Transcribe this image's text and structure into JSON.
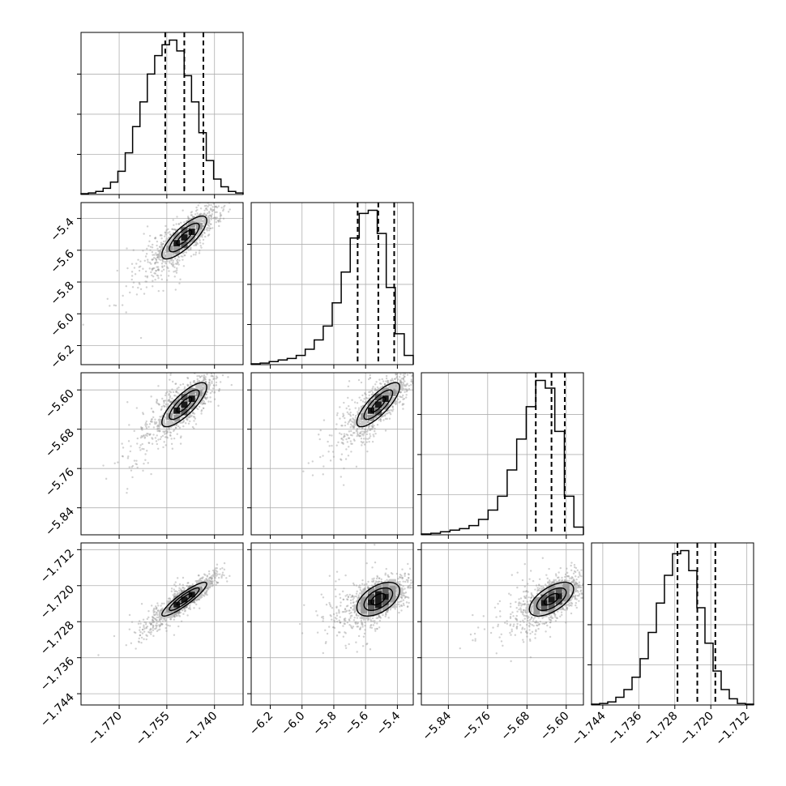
{
  "chart_data": {
    "type": "corner",
    "colors": {
      "line": "#000000",
      "grid": "#b0b0b0",
      "point": "#9a9a9a"
    },
    "params": [
      {
        "lo": -1.782,
        "hi": -1.731,
        "center": -1.7495,
        "sigma": 0.0047,
        "q": [
          -1.7555,
          -1.7495,
          -1.7435
        ],
        "ticks": [
          -1.77,
          -1.755,
          -1.74
        ],
        "tick_labels": [
          "−1.770",
          "−1.755",
          "−1.740"
        ]
      },
      {
        "lo": -6.32,
        "hi": -5.3,
        "center": -5.52,
        "sigma": 0.09,
        "q": [
          -5.65,
          -5.52,
          -5.42
        ],
        "ticks": [
          -6.2,
          -6.0,
          -5.8,
          -5.6,
          -5.4
        ],
        "tick_labels": [
          "−6.2",
          "−6.0",
          "−5.8",
          "−5.6",
          "−5.4"
        ]
      },
      {
        "lo": -5.895,
        "hi": -5.565,
        "center": -5.63,
        "sigma": 0.03,
        "q": [
          -5.662,
          -5.63,
          -5.603
        ],
        "ticks": [
          -5.84,
          -5.76,
          -5.68,
          -5.6
        ],
        "tick_labels": [
          "−5.84",
          "−5.76",
          "−5.68",
          "−5.60"
        ]
      },
      {
        "lo": -1.7465,
        "hi": -1.7105,
        "center": -1.723,
        "sigma": 0.0025,
        "q": [
          -1.7274,
          -1.723,
          -1.719
        ],
        "ticks": [
          -1.744,
          -1.736,
          -1.728,
          -1.72,
          -1.712
        ],
        "tick_labels": [
          "−1.744",
          "−1.736",
          "−1.728",
          "−1.720",
          "−1.712"
        ]
      }
    ],
    "histograms": [
      [
        0.005,
        0.01,
        0.02,
        0.04,
        0.08,
        0.15,
        0.27,
        0.44,
        0.6,
        0.78,
        0.9,
        0.97,
        1.0,
        0.93,
        0.77,
        0.6,
        0.4,
        0.22,
        0.1,
        0.05,
        0.02,
        0.01
      ],
      [
        0.005,
        0.01,
        0.02,
        0.03,
        0.04,
        0.06,
        0.1,
        0.16,
        0.25,
        0.4,
        0.6,
        0.82,
        0.98,
        1.0,
        0.85,
        0.5,
        0.2,
        0.06
      ],
      [
        0.005,
        0.01,
        0.02,
        0.03,
        0.04,
        0.06,
        0.1,
        0.16,
        0.25,
        0.42,
        0.62,
        0.83,
        1.0,
        0.95,
        0.67,
        0.25,
        0.05
      ],
      [
        0.005,
        0.01,
        0.02,
        0.05,
        0.1,
        0.18,
        0.3,
        0.47,
        0.66,
        0.84,
        0.98,
        1.0,
        0.87,
        0.63,
        0.4,
        0.22,
        0.1,
        0.04,
        0.01,
        0.005
      ]
    ],
    "correlations": [
      [
        1,
        0.8,
        0.8,
        0.9
      ],
      [
        0.8,
        1,
        0.8,
        0.5
      ],
      [
        0.8,
        0.8,
        1,
        0.6
      ],
      [
        0.9,
        0.5,
        0.6,
        1
      ]
    ]
  }
}
